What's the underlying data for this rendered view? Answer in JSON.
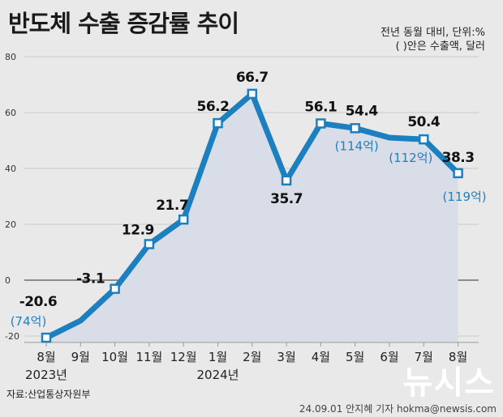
{
  "header": {
    "title": "반도체 수출 증감률 추이",
    "unit_line1": "전년 동월 대비, 단위:%",
    "unit_line2": "( )안은 수출액, 달러"
  },
  "footer": {
    "source": "자료:산업통상자원부",
    "credit": "24.09.01 안지혜 기자 hokma@newsis.com",
    "watermark": "뉴시스"
  },
  "colors": {
    "line": "#1c7fbf",
    "area": "#d8dde8",
    "amount_text": "#1f7fbf",
    "background": "#e9e9e9"
  },
  "chart_data": {
    "type": "line",
    "title": "반도체 수출 증감률 추이",
    "categories": [
      "8월",
      "9월",
      "10월",
      "11월",
      "12월",
      "1월",
      "2월",
      "3월",
      "4월",
      "5월",
      "6월",
      "7월",
      "8월"
    ],
    "year_labels": [
      {
        "index": 0,
        "text": "2023년"
      },
      {
        "index": 5,
        "text": "2024년"
      }
    ],
    "values": [
      -20.6,
      -14.5,
      -3.1,
      12.9,
      21.7,
      56.2,
      66.7,
      35.7,
      56.1,
      54.4,
      51.0,
      50.4,
      38.3
    ],
    "markers": [
      0,
      2,
      3,
      4,
      5,
      6,
      7,
      8,
      9,
      11,
      12
    ],
    "value_labels": [
      {
        "index": 0,
        "text": "-20.6"
      },
      {
        "index": 2,
        "text": "-3.1"
      },
      {
        "index": 3,
        "text": "12.9"
      },
      {
        "index": 4,
        "text": "21.7"
      },
      {
        "index": 5,
        "text": "56.2"
      },
      {
        "index": 6,
        "text": "66.7"
      },
      {
        "index": 7,
        "text": "35.7"
      },
      {
        "index": 8,
        "text": "56.1"
      },
      {
        "index": 9,
        "text": "54.4"
      },
      {
        "index": 11,
        "text": "50.4"
      },
      {
        "index": 12,
        "text": "38.3"
      }
    ],
    "amount_labels": [
      {
        "index": 0,
        "text": "(74억)"
      },
      {
        "index": 9,
        "text": "(114억)"
      },
      {
        "index": 11,
        "text": "(112억)"
      },
      {
        "index": 12,
        "text": "(119억)"
      }
    ],
    "yticks": [
      80,
      60,
      40,
      20,
      0,
      -20
    ],
    "ylim": [
      -22,
      80
    ],
    "grid": true
  }
}
